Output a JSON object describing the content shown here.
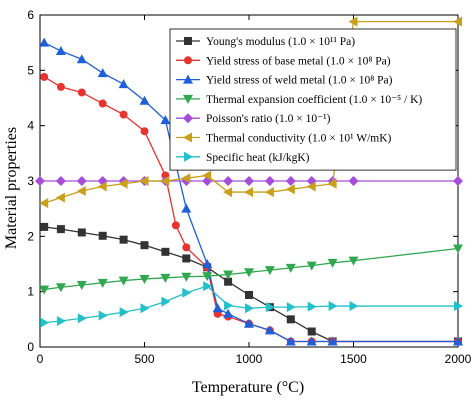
{
  "chart_data": {
    "type": "line",
    "xlabel": "Temperature (°C)",
    "ylabel": "Material properties",
    "xlim": [
      0,
      2000
    ],
    "ylim": [
      0,
      6
    ],
    "x_ticks": [
      0,
      500,
      1000,
      1500,
      2000
    ],
    "y_ticks": [
      0,
      1,
      2,
      3,
      4,
      5,
      6
    ],
    "grid": false,
    "legend_position": "top-right",
    "series": [
      {
        "name": "Young's modulus (1.0 × 10¹¹ Pa)",
        "color": "#333333",
        "marker": "square",
        "x": [
          20,
          100,
          200,
          300,
          400,
          500,
          600,
          700,
          800,
          900,
          1000,
          1100,
          1200,
          1300,
          1400,
          2000
        ],
        "y": [
          2.17,
          2.13,
          2.07,
          2.01,
          1.94,
          1.84,
          1.72,
          1.6,
          1.44,
          1.18,
          0.94,
          0.72,
          0.5,
          0.28,
          0.1,
          0.1
        ]
      },
      {
        "name": "Yield stress of base metal (1.0 × 10⁸ Pa)",
        "color": "#e8332e",
        "marker": "circle",
        "x": [
          20,
          100,
          200,
          300,
          400,
          500,
          600,
          650,
          700,
          800,
          850,
          900,
          1000,
          1100,
          1200,
          1300,
          1400,
          2000
        ],
        "y": [
          4.88,
          4.7,
          4.6,
          4.4,
          4.2,
          3.9,
          3.1,
          2.2,
          1.8,
          1.44,
          0.6,
          0.55,
          0.42,
          0.3,
          0.1,
          0.1,
          0.1,
          0.1
        ]
      },
      {
        "name": "Yield stress of weld metal (1.0 × 10⁸ Pa)",
        "color": "#1f5fd9",
        "marker": "triangle-up",
        "x": [
          20,
          100,
          200,
          300,
          400,
          500,
          600,
          700,
          800,
          850,
          900,
          1000,
          1100,
          1200,
          1300,
          1400,
          2000
        ],
        "y": [
          5.5,
          5.35,
          5.2,
          4.95,
          4.75,
          4.45,
          4.1,
          2.5,
          1.5,
          0.7,
          0.6,
          0.42,
          0.3,
          0.1,
          0.1,
          0.1,
          0.1
        ]
      },
      {
        "name": "Thermal expansion coefficient (1.0 × 10⁻⁵ / K)",
        "color": "#2fa84f",
        "marker": "triangle-down",
        "x": [
          20,
          100,
          200,
          300,
          400,
          500,
          600,
          700,
          800,
          900,
          1000,
          1100,
          1200,
          1300,
          1400,
          1500,
          2000
        ],
        "y": [
          1.04,
          1.08,
          1.12,
          1.16,
          1.2,
          1.23,
          1.25,
          1.27,
          1.28,
          1.31,
          1.35,
          1.39,
          1.43,
          1.47,
          1.52,
          1.56,
          1.78
        ]
      },
      {
        "name": "Poisson's ratio (1.0 × 10⁻¹)",
        "color": "#a64dd9",
        "marker": "diamond",
        "x": [
          0,
          100,
          200,
          300,
          400,
          500,
          600,
          700,
          800,
          900,
          1000,
          1100,
          1200,
          1300,
          1400,
          1500,
          2000
        ],
        "y": [
          3,
          3,
          3,
          3,
          3,
          3,
          3,
          3,
          3,
          3,
          3,
          3,
          3,
          3,
          3,
          3,
          3
        ]
      },
      {
        "name": "Thermal conductivity (1.0 × 10¹ W/mK)",
        "color": "#c9a01a",
        "marker": "triangle-left",
        "x": [
          20,
          100,
          200,
          300,
          400,
          500,
          600,
          700,
          800,
          900,
          1000,
          1100,
          1200,
          1300,
          1400,
          1500,
          2000
        ],
        "y": [
          2.6,
          2.7,
          2.82,
          2.9,
          2.95,
          3.0,
          3.0,
          3.05,
          3.1,
          2.8,
          2.8,
          2.8,
          2.85,
          2.9,
          2.95,
          5.88,
          5.88
        ]
      },
      {
        "name": "Specific heat (kJ/kgK)",
        "color": "#22c1c9",
        "marker": "triangle-right",
        "x": [
          20,
          100,
          200,
          300,
          400,
          500,
          600,
          700,
          800,
          900,
          1000,
          1100,
          1200,
          1300,
          1400,
          1500,
          2000
        ],
        "y": [
          0.44,
          0.47,
          0.52,
          0.57,
          0.63,
          0.7,
          0.82,
          0.98,
          1.1,
          0.75,
          0.7,
          0.72,
          0.72,
          0.73,
          0.74,
          0.74,
          0.74
        ]
      }
    ]
  }
}
